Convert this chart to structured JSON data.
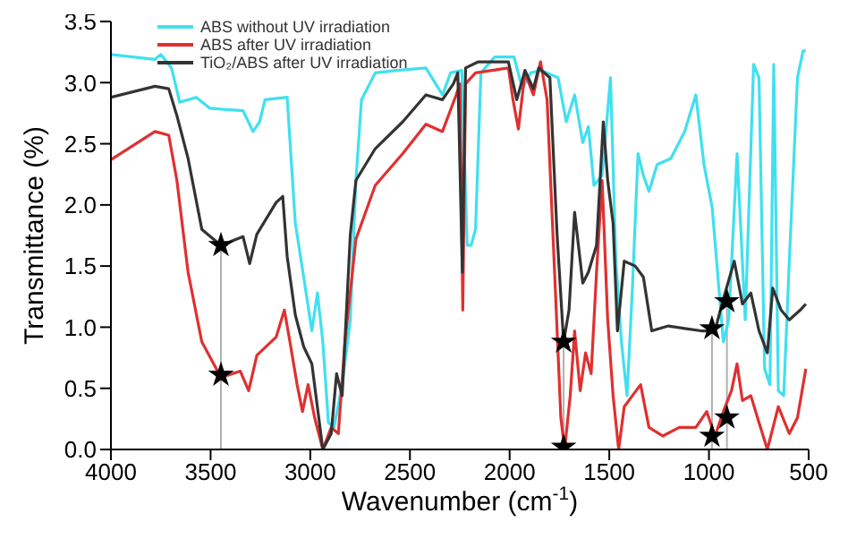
{
  "chart_data": {
    "type": "line",
    "xlabel": "Wavenumber (cm$^{-1}$)",
    "ylabel": "Transmittance (%)",
    "xlim": [
      4000,
      500
    ],
    "xticks": [
      4000,
      3500,
      3000,
      2500,
      2000,
      1500,
      1000,
      500
    ],
    "ylim": [
      0,
      3.5
    ],
    "yticks": [
      {
        "value": 0,
        "label": "0.0"
      },
      {
        "value": 0.5,
        "label": "0.5"
      },
      {
        "value": 1,
        "label": "1.0"
      },
      {
        "value": 1.5,
        "label": "1.5"
      },
      {
        "value": 2,
        "label": "2.0"
      },
      {
        "value": 2.5,
        "label": "2.5"
      },
      {
        "value": 3,
        "label": "3.0"
      },
      {
        "value": 3.5,
        "label": "3.5"
      }
    ],
    "grid": false,
    "legend": "top",
    "marker": "none",
    "line_style": "solid",
    "series": [
      {
        "name": "ABS without UV irradiation",
        "color": "#40e0f0",
        "x": [
          4000,
          3779,
          3750,
          3696,
          3655,
          3572,
          3503,
          3337,
          3287,
          3254,
          3227,
          3116,
          3075,
          3033,
          2992,
          2964,
          2937,
          2909,
          2881,
          2840,
          2799,
          2771,
          2743,
          2674,
          2564,
          2420,
          2337,
          2296,
          2240,
          2213,
          2193,
          2171,
          2144,
          2075,
          1978,
          1936,
          1895,
          1840,
          1757,
          1716,
          1674,
          1633,
          1605,
          1577,
          1536,
          1494,
          1467,
          1439,
          1411,
          1384,
          1356,
          1329,
          1301,
          1260,
          1191,
          1122,
          1066,
          1025,
          984,
          928,
          901,
          859,
          818,
          776,
          749,
          721,
          694,
          675,
          652,
          625,
          597,
          556,
          528,
          514
        ],
        "values": [
          3.23,
          3.19,
          3.23,
          3.12,
          2.84,
          2.88,
          2.79,
          2.77,
          2.6,
          2.68,
          2.86,
          2.88,
          1.85,
          1.41,
          0.97,
          1.28,
          0.88,
          0.22,
          0.18,
          0.53,
          1.06,
          2.2,
          2.86,
          3.08,
          3.1,
          3.12,
          2.9,
          3.08,
          3.1,
          1.67,
          1.67,
          1.8,
          3.08,
          3.21,
          3.21,
          2.95,
          3.08,
          3.1,
          3.04,
          2.68,
          2.9,
          2.51,
          2.64,
          2.16,
          2.24,
          3.04,
          1.54,
          0.88,
          0.44,
          1.32,
          2.42,
          2.24,
          2.11,
          2.33,
          2.38,
          2.6,
          2.9,
          2.33,
          1.98,
          0.88,
          1.06,
          2.42,
          1.06,
          3.15,
          3.04,
          0.66,
          0.53,
          3.15,
          0.48,
          0.44,
          1.54,
          3.04,
          3.26,
          3.26
        ]
      },
      {
        "name": "ABS after UV irradiation",
        "color": "#e03030",
        "x": [
          4000,
          3779,
          3710,
          3669,
          3613,
          3544,
          3448,
          3351,
          3309,
          3268,
          3171,
          3130,
          3102,
          3066,
          3039,
          3011,
          2978,
          2937,
          2895,
          2859,
          2826,
          2771,
          2674,
          2536,
          2420,
          2337,
          2268,
          2249,
          2235,
          2221,
          2171,
          2006,
          1983,
          1956,
          1923,
          1881,
          1845,
          1812,
          1771,
          1743,
          1724,
          1696,
          1674,
          1646,
          1619,
          1591,
          1564,
          1536,
          1508,
          1481,
          1453,
          1425,
          1384,
          1343,
          1301,
          1232,
          1149,
          1066,
          1011,
          970,
          928,
          887,
          859,
          832,
          790,
          749,
          707,
          652,
          597,
          556,
          514
        ],
        "values": [
          2.37,
          2.6,
          2.57,
          2.2,
          1.45,
          0.88,
          0.59,
          0.64,
          0.48,
          0.77,
          0.92,
          1.14,
          0.88,
          0.53,
          0.31,
          0.53,
          0.26,
          0,
          0.18,
          0.13,
          0.88,
          1.72,
          2.16,
          2.42,
          2.66,
          2.6,
          2.9,
          2.99,
          1.14,
          2.99,
          3.08,
          3.12,
          2.86,
          2.62,
          3.08,
          2.9,
          3.17,
          2.86,
          1.32,
          0.26,
          0,
          0.44,
          0.97,
          0.48,
          0.79,
          0.62,
          1.45,
          2.2,
          1.06,
          0.44,
          0,
          0.35,
          0.44,
          0.53,
          0.18,
          0.11,
          0.18,
          0.18,
          0.31,
          0.11,
          0.31,
          0.48,
          0.7,
          0.4,
          0.44,
          0.22,
          0,
          0.35,
          0.13,
          0.26,
          0.66
        ]
      },
      {
        "name": "TiO₂/ABS after UV irradiation",
        "color": "#333333",
        "x": [
          4000,
          3779,
          3710,
          3669,
          3613,
          3544,
          3448,
          3337,
          3304,
          3268,
          3171,
          3138,
          3116,
          3075,
          3033,
          2992,
          2937,
          2895,
          2868,
          2840,
          2799,
          2771,
          2674,
          2536,
          2420,
          2337,
          2282,
          2260,
          2237,
          2221,
          2157,
          2006,
          1964,
          1923,
          1881,
          1854,
          1798,
          1762,
          1729,
          1702,
          1674,
          1633,
          1605,
          1564,
          1530,
          1508,
          1481,
          1459,
          1425,
          1370,
          1329,
          1287,
          1204,
          1122,
          1039,
          970,
          928,
          873,
          832,
          790,
          749,
          707,
          680,
          638,
          597,
          542,
          514
        ],
        "values": [
          2.88,
          2.97,
          2.95,
          2.73,
          2.38,
          1.8,
          1.67,
          1.74,
          1.52,
          1.76,
          2.02,
          2.07,
          1.58,
          1.1,
          0.84,
          0.7,
          0,
          0.13,
          0.62,
          0.44,
          1.76,
          2.2,
          2.46,
          2.68,
          2.9,
          2.86,
          2.99,
          3.08,
          1.45,
          3.12,
          3.17,
          3.17,
          2.86,
          3.1,
          2.95,
          3.12,
          3.04,
          1.76,
          0.88,
          1.14,
          1.94,
          1.36,
          1.45,
          1.67,
          2.68,
          2.2,
          1.85,
          0.97,
          1.54,
          1.5,
          1.41,
          0.97,
          1.01,
          0.99,
          0.97,
          0.97,
          1.23,
          1.54,
          1.19,
          1.28,
          0.97,
          0.79,
          1.32,
          1.14,
          1.06,
          1.14,
          1.19
        ]
      },
      {
        "type": "scatter",
        "color": "#000000",
        "marker": "star",
        "x": [
          3448,
          3448,
          1729,
          1729,
          985,
          985,
          910,
          910
        ],
        "values": [
          1.67,
          0.61,
          0.88,
          0.02,
          0.99,
          0.11,
          1.21,
          0.26
        ]
      }
    ],
    "ref_lines": [
      {
        "axis": "x",
        "value": 3448,
        "color": "#b0b0b0"
      },
      {
        "axis": "x",
        "value": 1729,
        "color": "#b0b0b0"
      },
      {
        "axis": "x",
        "value": 985,
        "color": "#b0b0b0"
      },
      {
        "axis": "x",
        "value": 910,
        "color": "#b0b0b0"
      }
    ]
  }
}
